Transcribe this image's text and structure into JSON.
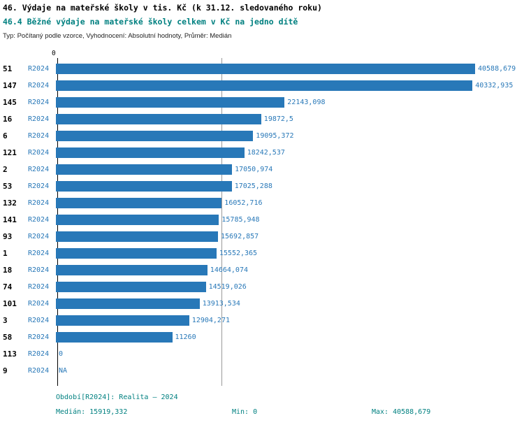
{
  "title": "46. Výdaje na mateřské školy v tis. Kč (k 31.12. sledovaného roku)",
  "subtitle": "46.4 Běžné výdaje na mateřské školy celkem v Kč na jedno dítě",
  "meta": "Typ: Počítaný podle vzorce, Vyhodnocení: Absolutní hodnoty, Průměr: Medián",
  "axis_origin_label": "0",
  "colors": {
    "bar": "#2878b8",
    "value_text": "#2878b8",
    "period_text": "#2878b8",
    "title_text": "#000000",
    "subtitle_text": "#008080",
    "footer_text": "#008080",
    "gridline": "#9a9a9a",
    "axis": "#000000"
  },
  "chart_data": {
    "type": "bar",
    "orientation": "horizontal",
    "series_label": "R2024",
    "xlabel": "",
    "ylabel": "",
    "xlim": [
      0,
      40588.679
    ],
    "median": 15919.332,
    "grid": "single vertical median line",
    "rows": [
      {
        "id": "51",
        "period": "R2024",
        "value": 40588.679,
        "label": "40588,679"
      },
      {
        "id": "147",
        "period": "R2024",
        "value": 40332.935,
        "label": "40332,935"
      },
      {
        "id": "145",
        "period": "R2024",
        "value": 22143.098,
        "label": "22143,098"
      },
      {
        "id": "16",
        "period": "R2024",
        "value": 19872.5,
        "label": "19872,5"
      },
      {
        "id": "6",
        "period": "R2024",
        "value": 19095.372,
        "label": "19095,372"
      },
      {
        "id": "121",
        "period": "R2024",
        "value": 18242.537,
        "label": "18242,537"
      },
      {
        "id": "2",
        "period": "R2024",
        "value": 17050.974,
        "label": "17050,974"
      },
      {
        "id": "53",
        "period": "R2024",
        "value": 17025.288,
        "label": "17025,288"
      },
      {
        "id": "132",
        "period": "R2024",
        "value": 16052.716,
        "label": "16052,716"
      },
      {
        "id": "141",
        "period": "R2024",
        "value": 15785.948,
        "label": "15785,948"
      },
      {
        "id": "93",
        "period": "R2024",
        "value": 15692.857,
        "label": "15692,857"
      },
      {
        "id": "1",
        "period": "R2024",
        "value": 15552.365,
        "label": "15552,365"
      },
      {
        "id": "18",
        "period": "R2024",
        "value": 14664.074,
        "label": "14664,074"
      },
      {
        "id": "74",
        "period": "R2024",
        "value": 14519.026,
        "label": "14519,026"
      },
      {
        "id": "101",
        "period": "R2024",
        "value": 13913.534,
        "label": "13913,534"
      },
      {
        "id": "3",
        "period": "R2024",
        "value": 12904.271,
        "label": "12904,271"
      },
      {
        "id": "58",
        "period": "R2024",
        "value": 11260,
        "label": "11260"
      },
      {
        "id": "113",
        "period": "R2024",
        "value": 0,
        "label": "0"
      },
      {
        "id": "9",
        "period": "R2024",
        "value": null,
        "label": "NA"
      }
    ]
  },
  "footer": {
    "period": "Období[R2024]: Realita – 2024",
    "median": "Medián: 15919,332",
    "min": "Min: 0",
    "max": "Max: 40588,679"
  }
}
